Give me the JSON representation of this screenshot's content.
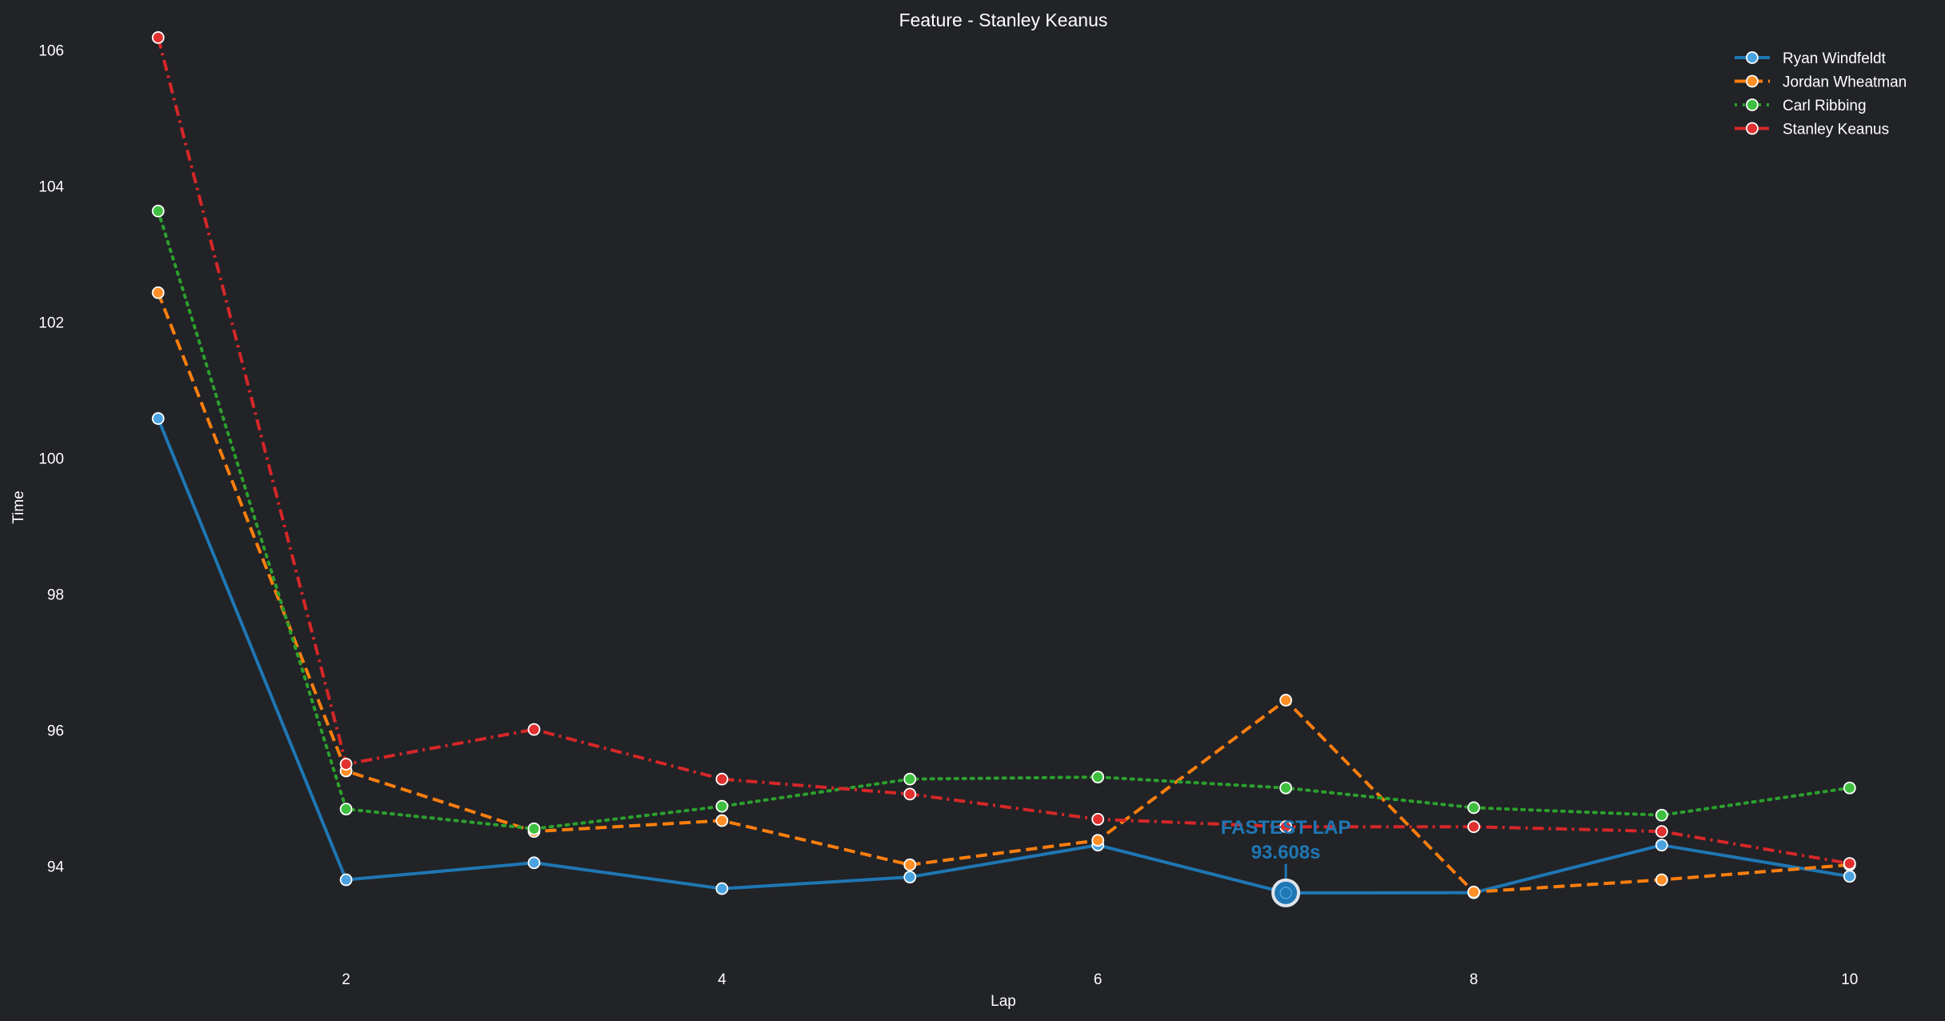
{
  "chart_data": {
    "type": "line",
    "title": "Feature - Stanley Keanus",
    "xlabel": "Lap",
    "ylabel": "Time",
    "xlim": [
      0.58,
      10.12
    ],
    "ylim": [
      92.63,
      106.45
    ],
    "xticks": [
      2,
      4,
      6,
      8,
      10
    ],
    "yticks": [
      94,
      96,
      98,
      100,
      102,
      104,
      106
    ],
    "grid": false,
    "legend_position": "top-right",
    "x": [
      1,
      2,
      3,
      4,
      5,
      6,
      7,
      8,
      9,
      10
    ],
    "series": [
      {
        "name": "Ryan Windfeldt",
        "color": "#1f77b4",
        "marker_color": "#4aa3e0",
        "dash": "solid",
        "values": [
          100.58,
          93.8,
          94.05,
          93.67,
          93.84,
          94.31,
          93.608,
          93.61,
          94.31,
          93.85
        ]
      },
      {
        "name": "Jordan Wheatman",
        "color": "#ff7f0e",
        "marker_color": "#ff8f26",
        "dash": "dashed",
        "values": [
          102.43,
          95.4,
          94.51,
          94.67,
          94.02,
          94.38,
          96.44,
          93.62,
          93.8,
          94.02
        ]
      },
      {
        "name": "Carl Ribbing",
        "color": "#2ca02c",
        "marker_color": "#3fbf3f",
        "dash": "dotted",
        "values": [
          103.63,
          94.84,
          94.55,
          94.88,
          95.28,
          95.31,
          95.15,
          94.86,
          94.75,
          95.15
        ]
      },
      {
        "name": "Stanley Keanus",
        "color": "#d62728",
        "marker_color": "#e03030",
        "dash": "dashdot",
        "values": [
          106.18,
          95.5,
          96.01,
          95.28,
          95.06,
          94.69,
          94.58,
          94.58,
          94.51,
          94.04
        ]
      }
    ],
    "annotation": {
      "label": "FASTEST LAP",
      "value_text": "93.608s",
      "lap": 7,
      "time": 93.608,
      "color": "#1f77b4"
    }
  }
}
